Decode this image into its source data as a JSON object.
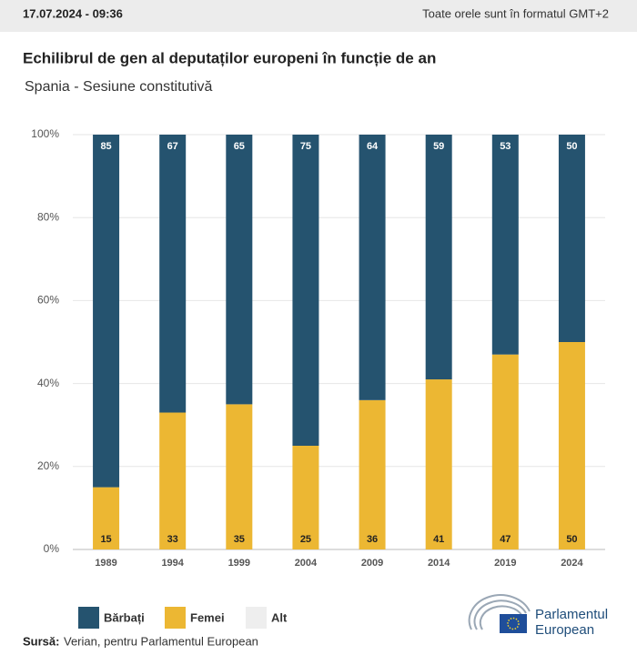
{
  "header": {
    "timestamp": "17.07.2024 - 09:36",
    "timezone_note": "Toate orele sunt în formatul GMT+2"
  },
  "chart_data": {
    "type": "bar",
    "stacked": true,
    "title": "Echilibrul de gen al deputaților europeni în funcție de an",
    "subtitle": "Spania - Sesiune constitutivă",
    "categories": [
      "1989",
      "1994",
      "1999",
      "2004",
      "2009",
      "2014",
      "2019",
      "2024"
    ],
    "series": [
      {
        "name": "Bărbați",
        "color": "#25536f",
        "values": [
          85,
          67,
          65,
          75,
          64,
          59,
          53,
          50
        ]
      },
      {
        "name": "Femei",
        "color": "#ecb733",
        "values": [
          15,
          33,
          35,
          25,
          36,
          41,
          47,
          50
        ]
      },
      {
        "name": "Alt",
        "color": "#eeeeee",
        "values": [
          0,
          0,
          0,
          0,
          0,
          0,
          0,
          0
        ]
      }
    ],
    "ylim": [
      0,
      100
    ],
    "yticks": [
      {
        "value": 0,
        "label": "0%"
      },
      {
        "value": 20,
        "label": "20%"
      },
      {
        "value": 40,
        "label": "40%"
      },
      {
        "value": 60,
        "label": "60%"
      },
      {
        "value": 80,
        "label": "80%"
      },
      {
        "value": 100,
        "label": "100%"
      }
    ],
    "grid": true,
    "legend": "bottom-left"
  },
  "source": {
    "label": "Sursă:",
    "text": "Verian, pentru Parlamentul European"
  },
  "logo": {
    "line1": "Parlamentul",
    "line2": "European"
  }
}
